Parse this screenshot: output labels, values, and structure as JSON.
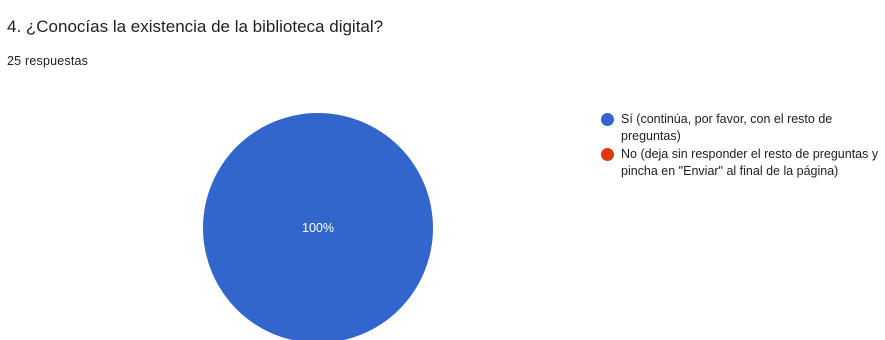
{
  "question": {
    "title": "4. ¿Conocías la existencia de la biblioteca digital?",
    "response_count": "25 respuestas"
  },
  "chart_data": {
    "type": "pie",
    "title": "4. ¿Conocías la existencia de la biblioteca digital?",
    "categories": [
      "Sí (continúa, por favor, con el resto de preguntas)",
      "No (deja sin responder el resto de preguntas y pincha en \"Enviar\" al final de la página)"
    ],
    "values": [
      100,
      0
    ],
    "colors": [
      "#3366cc",
      "#dc3912"
    ],
    "slice_labels": [
      "100%",
      ""
    ],
    "legend_position": "right"
  },
  "legend": {
    "items": [
      {
        "label": "Sí (continúa, por favor, con el resto de preguntas)",
        "color": "#3366cc"
      },
      {
        "label": "No (deja sin responder el resto de preguntas y pincha en \"Enviar\" al final de la página)",
        "color": "#dc3912"
      }
    ]
  }
}
